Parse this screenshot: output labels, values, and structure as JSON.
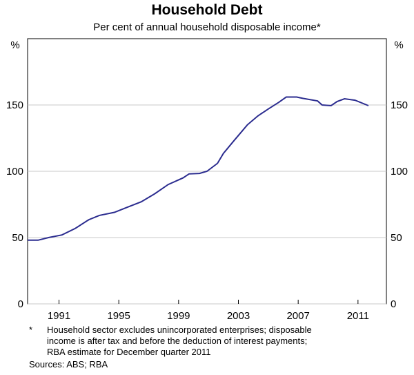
{
  "chart_data": {
    "type": "line",
    "title": "Household Debt",
    "subtitle": "Per cent of annual household disposable income*",
    "y_unit": "%",
    "x": [
      1988.9,
      1989.6,
      1990.3,
      1991.2,
      1992.1,
      1993.0,
      1993.7,
      1994.7,
      1995.6,
      1996.5,
      1997.4,
      1998.3,
      1999.3,
      1999.7,
      2000.4,
      2000.9,
      2001.6,
      2002.0,
      2002.7,
      2003.6,
      2004.3,
      2005.0,
      2005.7,
      2006.2,
      2006.9,
      2007.3,
      2008.3,
      2008.6,
      2009.2,
      2009.6,
      2010.1,
      2010.8,
      2011.7
    ],
    "series": [
      {
        "name": "Household debt",
        "color": "#2b2c8f",
        "values": [
          48,
          48,
          50,
          52,
          57,
          63.5,
          66.7,
          69,
          73,
          77,
          83,
          90,
          95,
          98,
          98.4,
          100,
          106,
          113.5,
          123,
          135,
          141.7,
          147,
          152,
          156,
          156,
          155,
          153,
          150,
          149.5,
          152.6,
          154.7,
          153.6,
          149.5
        ]
      }
    ],
    "xlim": [
      1988.9,
      2012.9
    ],
    "xticks": [
      1991,
      1995,
      1999,
      2003,
      2007,
      2011
    ],
    "ylim": [
      0,
      200
    ],
    "yticks": [
      0,
      50,
      100,
      150
    ],
    "grid": true,
    "footnote_marker": "*",
    "footnote": [
      "Household sector excludes unincorporated enterprises; disposable",
      "income is after tax and before the deduction of interest payments;",
      "RBA estimate for December quarter 2011"
    ],
    "sources": "Sources: ABS; RBA"
  }
}
